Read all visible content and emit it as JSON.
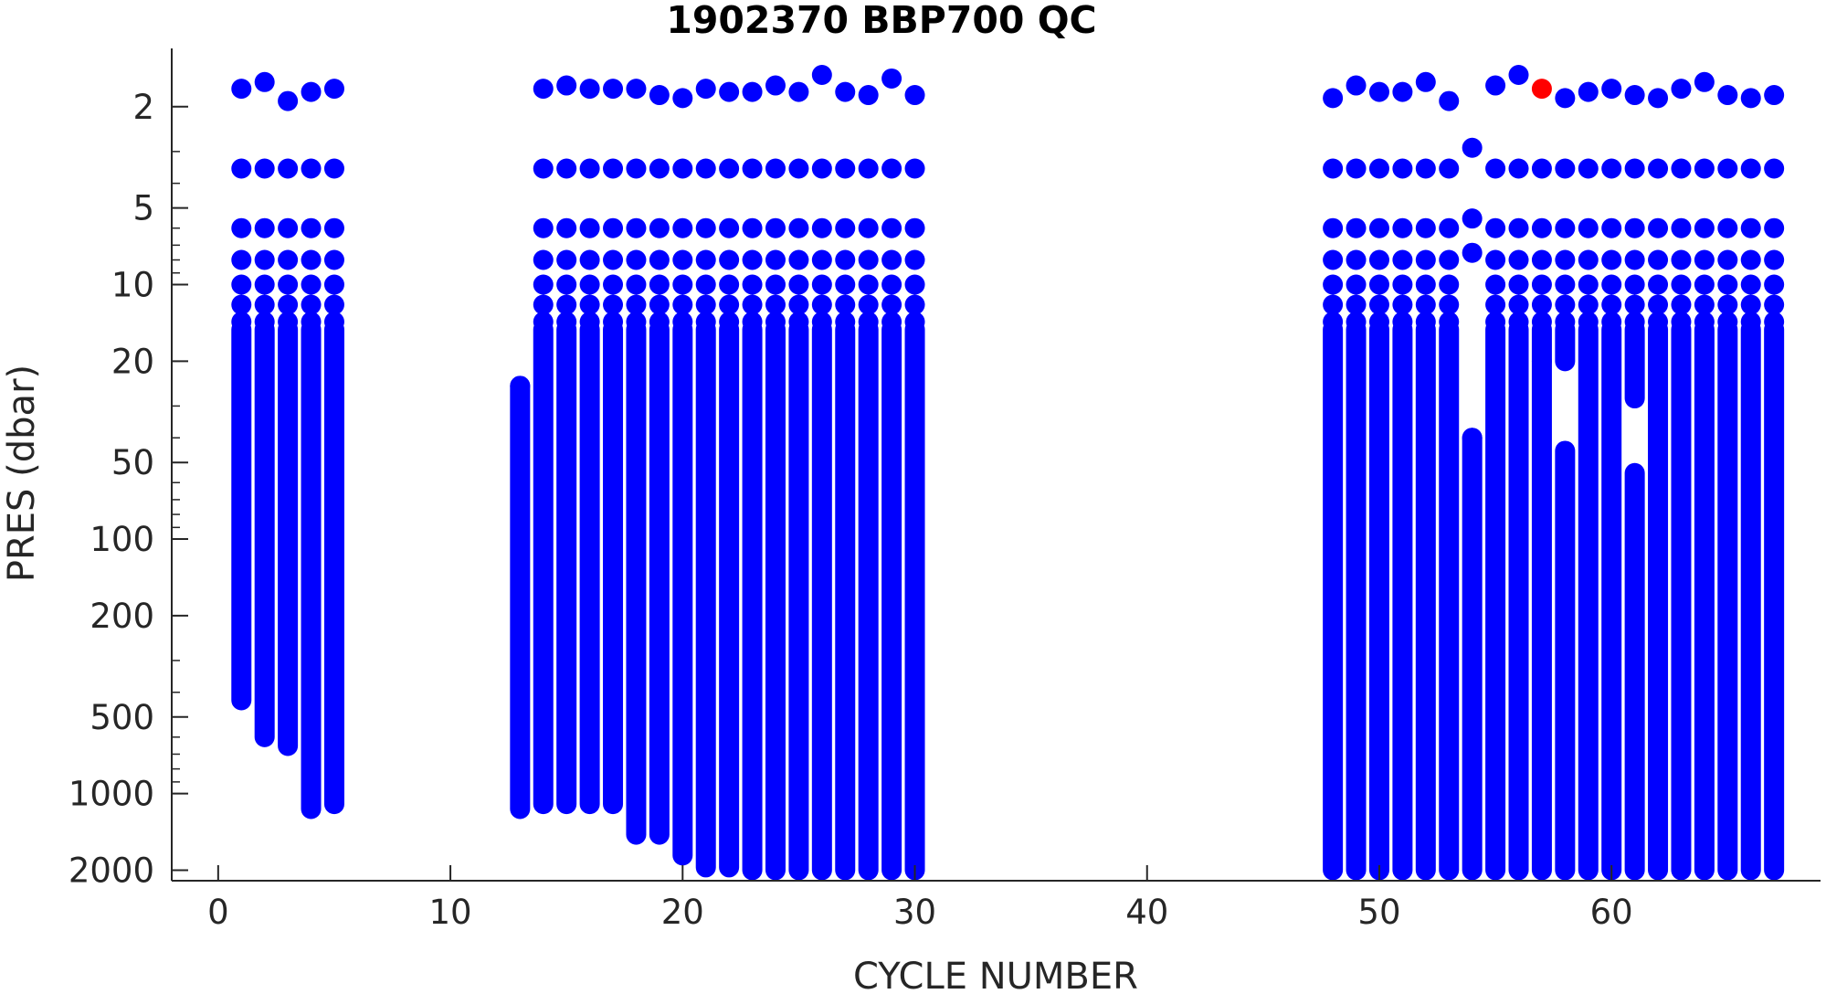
{
  "chart_data": {
    "type": "scatter",
    "title": "1902370 BBP700 QC",
    "xlabel": "CYCLE NUMBER",
    "ylabel": "PRES (dbar)",
    "xlim": [
      -2,
      69
    ],
    "ylim": [
      1.2,
      2200
    ],
    "yscale": "log",
    "y_reversed": true,
    "x_ticks": [
      0,
      10,
      20,
      30,
      40,
      50,
      60
    ],
    "y_ticks": [
      2,
      5,
      10,
      20,
      50,
      100,
      200,
      500,
      1000,
      2000
    ],
    "grid": false,
    "colors": {
      "good": "#0000ff",
      "flagged": "#ff0000",
      "axis": "#262626"
    },
    "profile_surface_levels": [
      3.5,
      6,
      8,
      10,
      12,
      14
    ],
    "profiles": [
      {
        "cycle": 1,
        "top": 1.7,
        "bottom": 430
      },
      {
        "cycle": 2,
        "top": 1.6,
        "bottom": 600
      },
      {
        "cycle": 3,
        "top": 1.9,
        "bottom": 650
      },
      {
        "cycle": 4,
        "top": 1.75,
        "bottom": 1150
      },
      {
        "cycle": 5,
        "top": 1.7,
        "bottom": 1100
      },
      {
        "cycle": 13,
        "top": 25,
        "bottom": 1150
      },
      {
        "cycle": 14,
        "top": 1.7,
        "bottom": 1100
      },
      {
        "cycle": 15,
        "top": 1.65,
        "bottom": 1100
      },
      {
        "cycle": 16,
        "top": 1.7,
        "bottom": 1100
      },
      {
        "cycle": 17,
        "top": 1.7,
        "bottom": 1100
      },
      {
        "cycle": 18,
        "top": 1.7,
        "bottom": 1450
      },
      {
        "cycle": 19,
        "top": 1.8,
        "bottom": 1450
      },
      {
        "cycle": 20,
        "top": 1.85,
        "bottom": 1750
      },
      {
        "cycle": 21,
        "top": 1.7,
        "bottom": 1950
      },
      {
        "cycle": 22,
        "top": 1.75,
        "bottom": 1950
      },
      {
        "cycle": 23,
        "top": 1.75,
        "bottom": 2000
      },
      {
        "cycle": 24,
        "top": 1.65,
        "bottom": 2000
      },
      {
        "cycle": 25,
        "top": 1.75,
        "bottom": 2000
      },
      {
        "cycle": 26,
        "top": 1.5,
        "bottom": 2000
      },
      {
        "cycle": 27,
        "top": 1.75,
        "bottom": 2000
      },
      {
        "cycle": 28,
        "top": 1.8,
        "bottom": 2000
      },
      {
        "cycle": 29,
        "top": 1.55,
        "bottom": 2000
      },
      {
        "cycle": 30,
        "top": 1.8,
        "bottom": 2000
      },
      {
        "cycle": 48,
        "top": 1.85,
        "bottom": 2000
      },
      {
        "cycle": 49,
        "top": 1.65,
        "bottom": 2000
      },
      {
        "cycle": 50,
        "top": 1.75,
        "bottom": 2000
      },
      {
        "cycle": 51,
        "top": 1.75,
        "bottom": 2000
      },
      {
        "cycle": 52,
        "top": 1.6,
        "bottom": 2000
      },
      {
        "cycle": 53,
        "top": 1.9,
        "bottom": 2000
      },
      {
        "cycle": 54,
        "top": 40,
        "bottom": 2000
      },
      {
        "cycle": 55,
        "top": 1.65,
        "bottom": 2000
      },
      {
        "cycle": 56,
        "top": 1.5,
        "bottom": 2000
      },
      {
        "cycle": 57,
        "top": 3.5,
        "bottom": 2000,
        "gap": [
          20,
          20
        ]
      },
      {
        "cycle": 58,
        "top": 3.5,
        "bottom": 2000,
        "gap": [
          20,
          45
        ]
      },
      {
        "cycle": 59,
        "top": 1.75,
        "bottom": 2000
      },
      {
        "cycle": 60,
        "top": 1.7,
        "bottom": 2000
      },
      {
        "cycle": 61,
        "top": 1.8,
        "bottom": 2000,
        "gap": [
          28,
          55
        ]
      },
      {
        "cycle": 62,
        "top": 1.85,
        "bottom": 2000
      },
      {
        "cycle": 63,
        "top": 1.7,
        "bottom": 2000
      },
      {
        "cycle": 64,
        "top": 1.6,
        "bottom": 2000
      },
      {
        "cycle": 65,
        "top": 1.8,
        "bottom": 2000
      },
      {
        "cycle": 66,
        "top": 1.85,
        "bottom": 2000
      },
      {
        "cycle": 67,
        "top": 1.8,
        "bottom": 2000
      }
    ],
    "surface_points": [
      {
        "cycle": 54,
        "pres": 2.9,
        "flag": "good"
      },
      {
        "cycle": 54,
        "pres": 5.5,
        "flag": "good"
      },
      {
        "cycle": 54,
        "pres": 7.5,
        "flag": "good"
      },
      {
        "cycle": 57,
        "pres": 1.7,
        "flag": "bad"
      },
      {
        "cycle": 58,
        "pres": 1.85,
        "flag": "good"
      }
    ]
  }
}
